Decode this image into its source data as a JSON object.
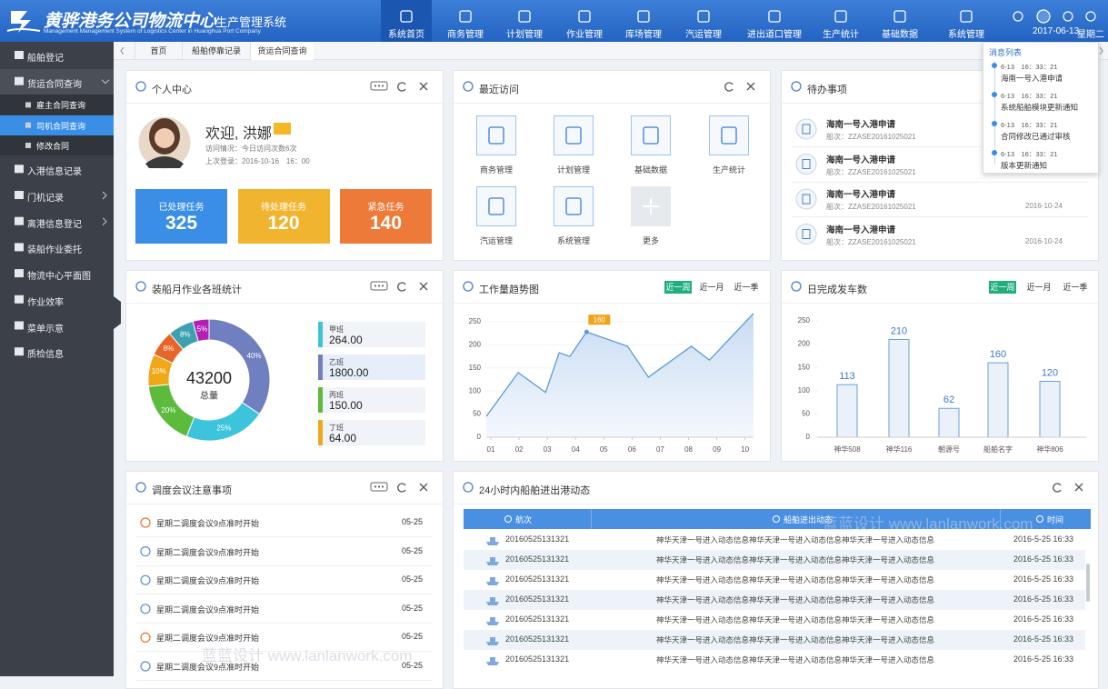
{
  "header": {
    "title": "黄骅港务公司物流中心",
    "subtitle": "生产管理系统",
    "english": "Management Management System of Logistics Center in Huanghua Port Company",
    "nav": [
      "系统首页",
      "商务管理",
      "计划管理",
      "作业管理",
      "库场管理",
      "汽运管理",
      "进出道口管理",
      "生产统计",
      "基础数据",
      "系统管理"
    ],
    "date": "2017-06-13",
    "weekday": "星期二"
  },
  "sidebar": {
    "items": [
      {
        "label": "船舶登记"
      },
      {
        "label": "货运合同查询",
        "children": [
          "雇主合同查询",
          "司机合同查询",
          "修改合同"
        ]
      },
      {
        "label": "入港信息记录"
      },
      {
        "label": "门机记录"
      },
      {
        "label": "离港信息登记"
      },
      {
        "label": "装船作业委托"
      },
      {
        "label": "物流中心平面图"
      },
      {
        "label": "作业效率"
      },
      {
        "label": "菜单示意"
      },
      {
        "label": "质检信息"
      }
    ]
  },
  "tabs": [
    "首页",
    "船舶停靠记录",
    "货运合同查询"
  ],
  "profile": {
    "title": "个人中心",
    "welcome": "欢迎, 洪娜",
    "visits": "访问情况：今日访问次数6次",
    "last_login": "上次登录：2016-10-16　16：00",
    "stats": [
      {
        "label": "已处理任务",
        "value": 325
      },
      {
        "label": "待处理任务",
        "value": 120
      },
      {
        "label": "紧急任务",
        "value": 140
      }
    ]
  },
  "recent": {
    "title": "最近访问",
    "items": [
      "商务管理",
      "计划管理",
      "基础数据",
      "生产统计",
      "汽运管理",
      "系统管理",
      "更多"
    ]
  },
  "todo": {
    "title": "待办事项",
    "items": [
      {
        "title": "海南一号入港申请",
        "sub": "船次：ZZASE20161025021"
      },
      {
        "title": "海南一号入港申请",
        "sub": "船次：ZZASE20161025021"
      },
      {
        "title": "海南一号入港申请",
        "sub": "船次：ZZASE20161025021",
        "date": "2016-10-24"
      },
      {
        "title": "海南一号入港申请",
        "sub": "船次：ZZASE20161025021",
        "date": "2016-10-24"
      }
    ]
  },
  "messages": {
    "title": "消息列表",
    "items": [
      {
        "time": "6-13　16：33：21",
        "text": "海南一号入港申请"
      },
      {
        "time": "6-13　16：33：21",
        "text": "系统船舶模块更新通知"
      },
      {
        "time": "6-13　16：33：21",
        "text": "合同修改已通过审核"
      },
      {
        "time": "6-13　16：33：21",
        "text": "版本更新通知"
      }
    ]
  },
  "donut": {
    "type": "pie",
    "title": "装船月作业各班统计",
    "total": 43200,
    "total_label": "总量",
    "values": [
      40,
      25,
      20,
      10,
      8,
      8,
      5
    ],
    "value_labels": [
      "40%",
      "25%",
      "20%",
      "10%",
      "8%",
      "8%",
      "5%"
    ],
    "colors": [
      "#6f7fbf",
      "#3bc4dc",
      "#5cba3c",
      "#f0a818",
      "#e8652a",
      "#3fa0b0",
      "#b41fb4"
    ],
    "legend": [
      {
        "name": "甲班",
        "value": 264,
        "label": "264.00",
        "color": "#3bc4dc"
      },
      {
        "name": "乙班",
        "value": 1800,
        "label": "1800.00",
        "color": "#6f7fbf"
      },
      {
        "name": "丙班",
        "value": 150,
        "label": "150.00",
        "color": "#5cba3c"
      },
      {
        "name": "丁班",
        "value": 64,
        "label": "64.00",
        "color": "#f0a818"
      }
    ]
  },
  "line": {
    "type": "line",
    "title": "工作量趋势图",
    "ranges": [
      "近一周",
      "近一月",
      "近一季"
    ],
    "x": [
      0.84,
      1.97,
      2.94,
      3.42,
      3.8,
      4.39,
      5.84,
      6.58,
      8.1,
      8.74,
      10.3
    ],
    "values": [
      45,
      140,
      97,
      183,
      175,
      228,
      197,
      130,
      197,
      167,
      268
    ],
    "xlim": [
      0.84,
      10.3
    ],
    "ylim": [
      0,
      270
    ],
    "yticks": [
      0,
      50,
      100,
      150,
      200,
      250
    ],
    "xticks": [
      {
        "value": 1,
        "label": "01"
      },
      {
        "value": 2,
        "label": "02"
      },
      {
        "value": 3,
        "label": "03"
      },
      {
        "value": 4,
        "label": "04"
      },
      {
        "value": 5,
        "label": "05"
      },
      {
        "value": 6,
        "label": "06"
      },
      {
        "value": 7,
        "label": "07"
      },
      {
        "value": 8,
        "label": "08"
      },
      {
        "value": 9,
        "label": "09"
      },
      {
        "value": 10,
        "label": "10"
      }
    ],
    "annotation": "160",
    "color": "#5b9bd5"
  },
  "bars": {
    "type": "bar",
    "title": "日完成发车数",
    "ranges": [
      "近一周",
      "近一月",
      "近一季"
    ],
    "categories": [
      "神华508",
      "神华116",
      "朝源号",
      "船舶名字",
      "神华806"
    ],
    "values": [
      113,
      210,
      62,
      160,
      120
    ],
    "ylim": [
      0,
      250
    ],
    "yticks": [
      0,
      50,
      100,
      150,
      200,
      250
    ],
    "color": "#6c9ed8"
  },
  "meeting": {
    "title": "调度会议注意事项",
    "items": [
      {
        "text": "星期二调度会议9点准时开始",
        "date": "05-25"
      },
      {
        "text": "星期二调度会议9点准时开始",
        "date": "05-25"
      },
      {
        "text": "星期二调度会议9点准时开始",
        "date": "05-25"
      },
      {
        "text": "星期二调度会议9点准时开始",
        "date": "05-25"
      },
      {
        "text": "星期二调度会议9点准时开始",
        "date": "05-25"
      },
      {
        "text": "星期二调度会议9点准时开始",
        "date": "05-25"
      }
    ]
  },
  "ships": {
    "title": "24小时内船舶进出港动态",
    "columns": [
      "航次",
      "船舶进出动态",
      "时间"
    ],
    "rows": [
      [
        "20160525131321",
        "神华天津一号进入动态信息神华天津一号进入动态信息神华天津一号进入动态信息",
        "2016-5-25 16:33"
      ],
      [
        "20160525131321",
        "神华天津一号进入动态信息神华天津一号进入动态信息神华天津一号进入动态信息",
        "2016-5-25 16:33"
      ],
      [
        "20160525131321",
        "神华天津一号进入动态信息神华天津一号进入动态信息神华天津一号进入动态信息",
        "2016-5-25 16:33"
      ],
      [
        "20160525131321",
        "神华天津一号进入动态信息神华天津一号进入动态信息神华天津一号进入动态信息",
        "2016-5-25 16:33"
      ],
      [
        "20160525131321",
        "神华天津一号进入动态信息神华天津一号进入动态信息神华天津一号进入动态信息",
        "2016-5-25 16:33"
      ],
      [
        "20160525131321",
        "神华天津一号进入动态信息神华天津一号进入动态信息神华天津一号进入动态信息",
        "2016-5-25 16:33"
      ],
      [
        "20160525131321",
        "神华天津一号进入动态信息神华天津一号进入动态信息神华天津一号进入动态信息",
        "2016-5-25 16:33"
      ]
    ]
  },
  "watermark": "蓝蓝设计 www.lanlanwork.com"
}
